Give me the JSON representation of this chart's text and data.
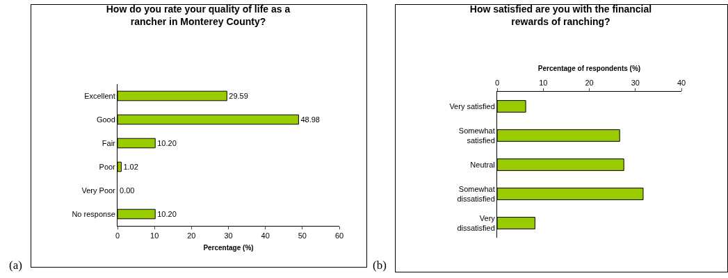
{
  "chart_data": [
    {
      "type": "bar",
      "orientation": "horizontal",
      "title": "How do you rate your quality of life as a rancher in Monterey County?",
      "xlabel": "Percentage (%)",
      "categories": [
        "Excellent",
        "Good",
        "Fair",
        "Poor",
        "Very Poor",
        "No response"
      ],
      "values": [
        29.59,
        48.98,
        10.2,
        1.02,
        0,
        10.2
      ],
      "value_labels": [
        "29.59",
        "48.98",
        "10.20",
        "1.02",
        "0.00",
        "10.20"
      ],
      "color": "#99cc00",
      "xlim": [
        0,
        60
      ],
      "xticks": [
        0,
        10,
        20,
        30,
        40,
        50,
        60
      ],
      "annotations": [
        "(a)"
      ]
    },
    {
      "type": "bar",
      "orientation": "horizontal",
      "title": "How satisfied are you with the financial rewards of ranching?",
      "xlabel": "Percentage of respondents (%)",
      "categories": [
        "Very satisfied",
        "Somewhat satisfied",
        "Neutral",
        "Somewhat dissatisfied",
        "Very dissatisfied"
      ],
      "values": [
        6.2,
        26.6,
        27.5,
        31.7,
        8.2
      ],
      "color": "#99cc00",
      "xlim": [
        0,
        40
      ],
      "xticks": [
        0,
        10,
        20,
        30,
        40
      ],
      "annotations": [
        "(b)"
      ]
    }
  ]
}
